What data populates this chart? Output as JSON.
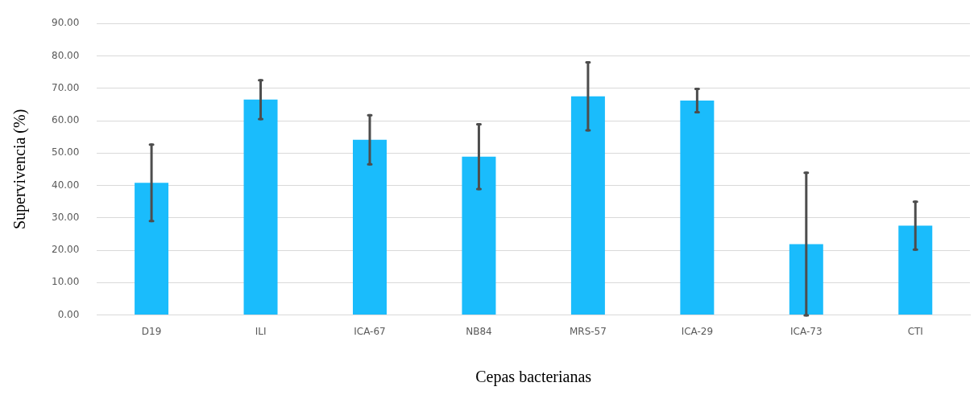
{
  "chart_data": {
    "type": "bar",
    "xlabel": "Cepas bacterianas",
    "ylabel": "Supervivencia (%)",
    "categories": [
      "D19",
      "ILI",
      "ICA-67",
      "NB84",
      "MRS-57",
      "ICA-29",
      "ICA-73",
      "CTI"
    ],
    "values": [
      40.8,
      66.5,
      54.1,
      48.9,
      67.5,
      66.2,
      21.9,
      27.6
    ],
    "errors": [
      11.8,
      6.0,
      7.6,
      10.0,
      10.5,
      3.6,
      22.0,
      7.4
    ],
    "color": "#1abcfc",
    "grid": "y",
    "legend": false,
    "ylim": [
      0,
      90
    ],
    "yticks": [
      {
        "value": 0,
        "label": "0.00"
      },
      {
        "value": 10,
        "label": "10.00"
      },
      {
        "value": 20,
        "label": "20.00"
      },
      {
        "value": 30,
        "label": "30.00"
      },
      {
        "value": 40,
        "label": "40.00"
      },
      {
        "value": 50,
        "label": "50.00"
      },
      {
        "value": 60,
        "label": "60.00"
      },
      {
        "value": 70,
        "label": "70.00"
      },
      {
        "value": 80,
        "label": "80.00"
      },
      {
        "value": 90,
        "label": "90.00"
      }
    ]
  }
}
